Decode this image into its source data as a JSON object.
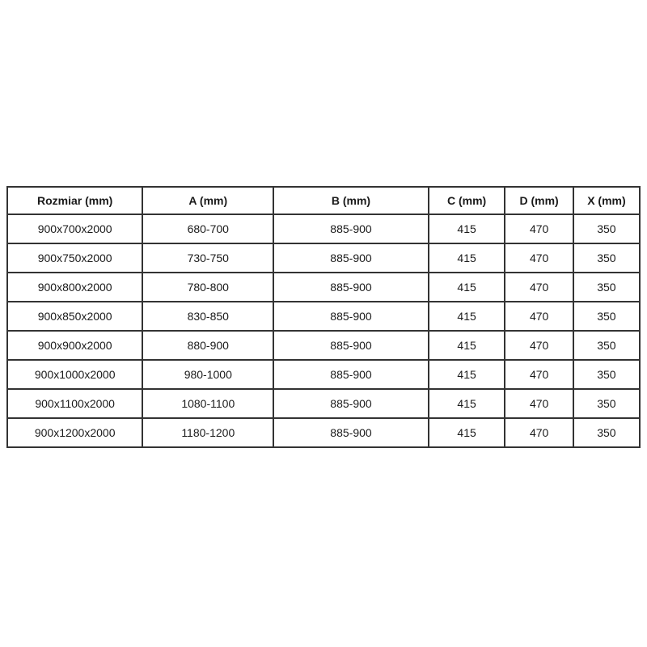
{
  "colors": {
    "background": "#ffffff",
    "border": "#333333",
    "text": "#1a1a1a"
  },
  "chart_data": {
    "type": "table",
    "title": "",
    "headers": [
      "Rozmiar (mm)",
      "A (mm)",
      "B (mm)",
      "C (mm)",
      "D (mm)",
      "X (mm)"
    ],
    "rows": [
      [
        "900x700x2000",
        "680-700",
        "885-900",
        "415",
        "470",
        "350"
      ],
      [
        "900x750x2000",
        "730-750",
        "885-900",
        "415",
        "470",
        "350"
      ],
      [
        "900x800x2000",
        "780-800",
        "885-900",
        "415",
        "470",
        "350"
      ],
      [
        "900x850x2000",
        "830-850",
        "885-900",
        "415",
        "470",
        "350"
      ],
      [
        "900x900x2000",
        "880-900",
        "885-900",
        "415",
        "470",
        "350"
      ],
      [
        "900x1000x2000",
        "980-1000",
        "885-900",
        "415",
        "470",
        "350"
      ],
      [
        "900x1100x2000",
        "1080-1100",
        "885-900",
        "415",
        "470",
        "350"
      ],
      [
        "900x1200x2000",
        "1180-1200",
        "885-900",
        "415",
        "470",
        "350"
      ]
    ]
  }
}
